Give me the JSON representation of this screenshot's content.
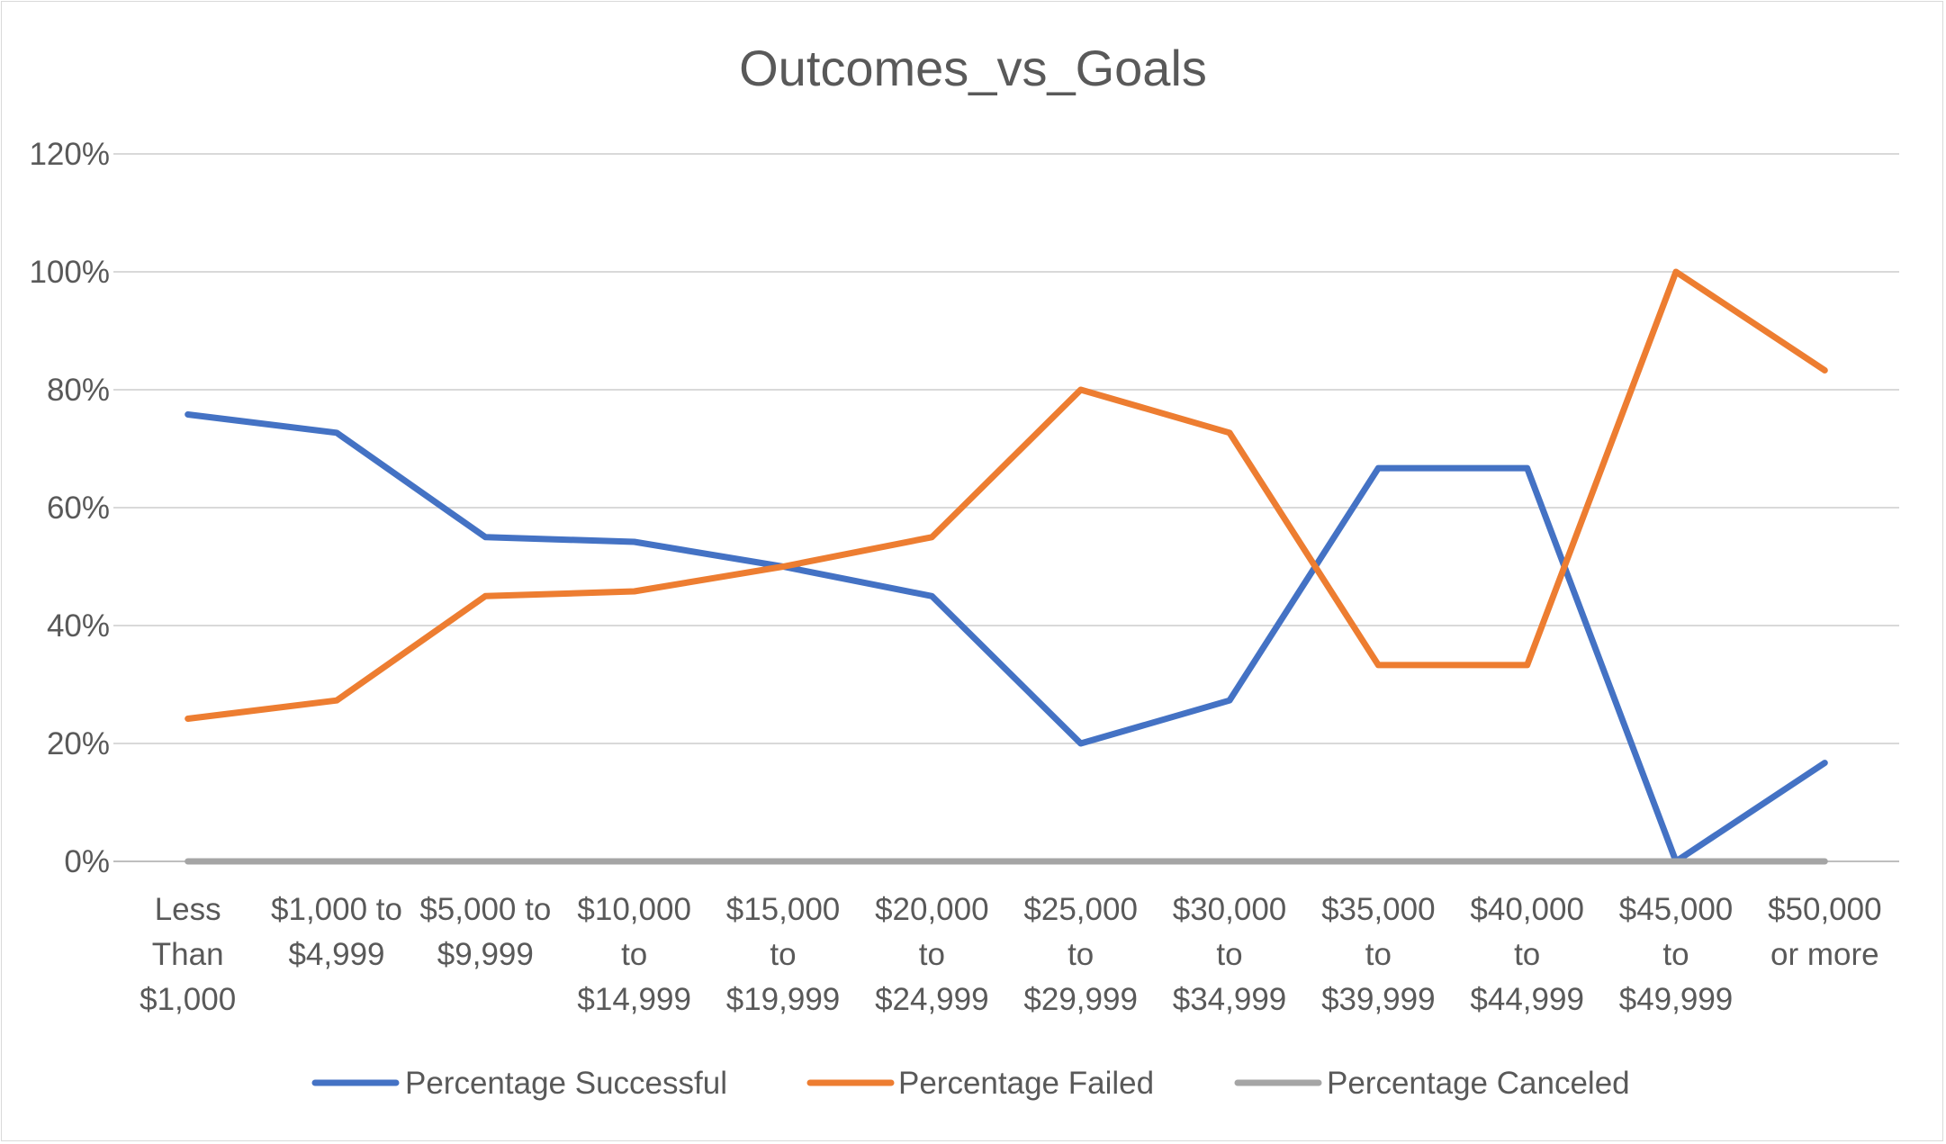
{
  "chart_data": {
    "type": "line",
    "title": "Outcomes_vs_Goals",
    "xlabel": "",
    "ylabel": "",
    "categories": [
      [
        "Less",
        "Than",
        "$1,000"
      ],
      [
        "$1,000 to",
        "$4,999"
      ],
      [
        "$5,000 to",
        "$9,999"
      ],
      [
        "$10,000",
        "to",
        "$14,999"
      ],
      [
        "$15,000",
        "to",
        "$19,999"
      ],
      [
        "$20,000",
        "to",
        "$24,999"
      ],
      [
        "$25,000",
        "to",
        "$29,999"
      ],
      [
        "$30,000",
        "to",
        "$34,999"
      ],
      [
        "$35,000",
        "to",
        "$39,999"
      ],
      [
        "$40,000",
        "to",
        "$44,999"
      ],
      [
        "$45,000",
        "to",
        "$49,999"
      ],
      [
        "$50,000",
        "or more"
      ]
    ],
    "series": [
      {
        "name": "Percentage Successful",
        "color": "#4472C4",
        "values": [
          0.758,
          0.727,
          0.55,
          0.542,
          0.5,
          0.45,
          0.2,
          0.273,
          0.667,
          0.667,
          0.0,
          0.167
        ]
      },
      {
        "name": "Percentage Failed",
        "color": "#ED7D31",
        "values": [
          0.242,
          0.273,
          0.45,
          0.458,
          0.5,
          0.55,
          0.8,
          0.727,
          0.333,
          0.333,
          1.0,
          0.833
        ]
      },
      {
        "name": "Percentage Canceled",
        "color": "#A5A5A5",
        "values": [
          0,
          0,
          0,
          0,
          0,
          0,
          0,
          0,
          0,
          0,
          0,
          0
        ]
      }
    ],
    "ylim": [
      0,
      1.2
    ],
    "yticks": [
      "0%",
      "20%",
      "40%",
      "60%",
      "80%",
      "100%",
      "120%"
    ],
    "grid": true,
    "legend_position": "bottom"
  }
}
